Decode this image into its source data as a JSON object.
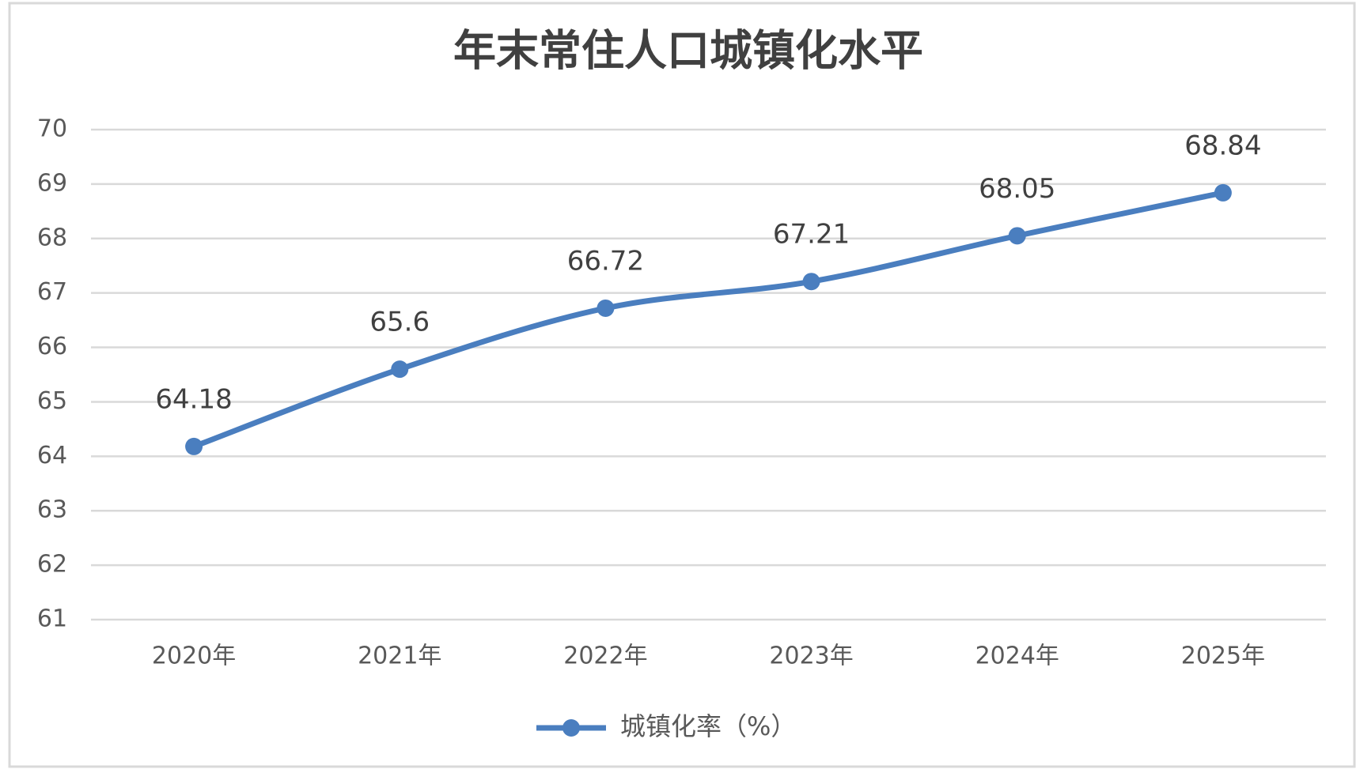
{
  "chart_data": {
    "type": "line",
    "title": "年末常住人口城镇化水平",
    "categories": [
      "2020年",
      "2021年",
      "2022年",
      "2023年",
      "2024年",
      "2025年"
    ],
    "series": [
      {
        "name": "城镇化率（%）",
        "color": "#4a7ebf",
        "values": [
          64.18,
          65.6,
          66.72,
          67.21,
          68.05,
          68.84
        ]
      }
    ],
    "ylim": [
      61,
      70
    ],
    "yticks": [
      61,
      62,
      63,
      64,
      65,
      66,
      67,
      68,
      69,
      70
    ],
    "grid": true,
    "smooth": true,
    "legend": "bottom"
  }
}
